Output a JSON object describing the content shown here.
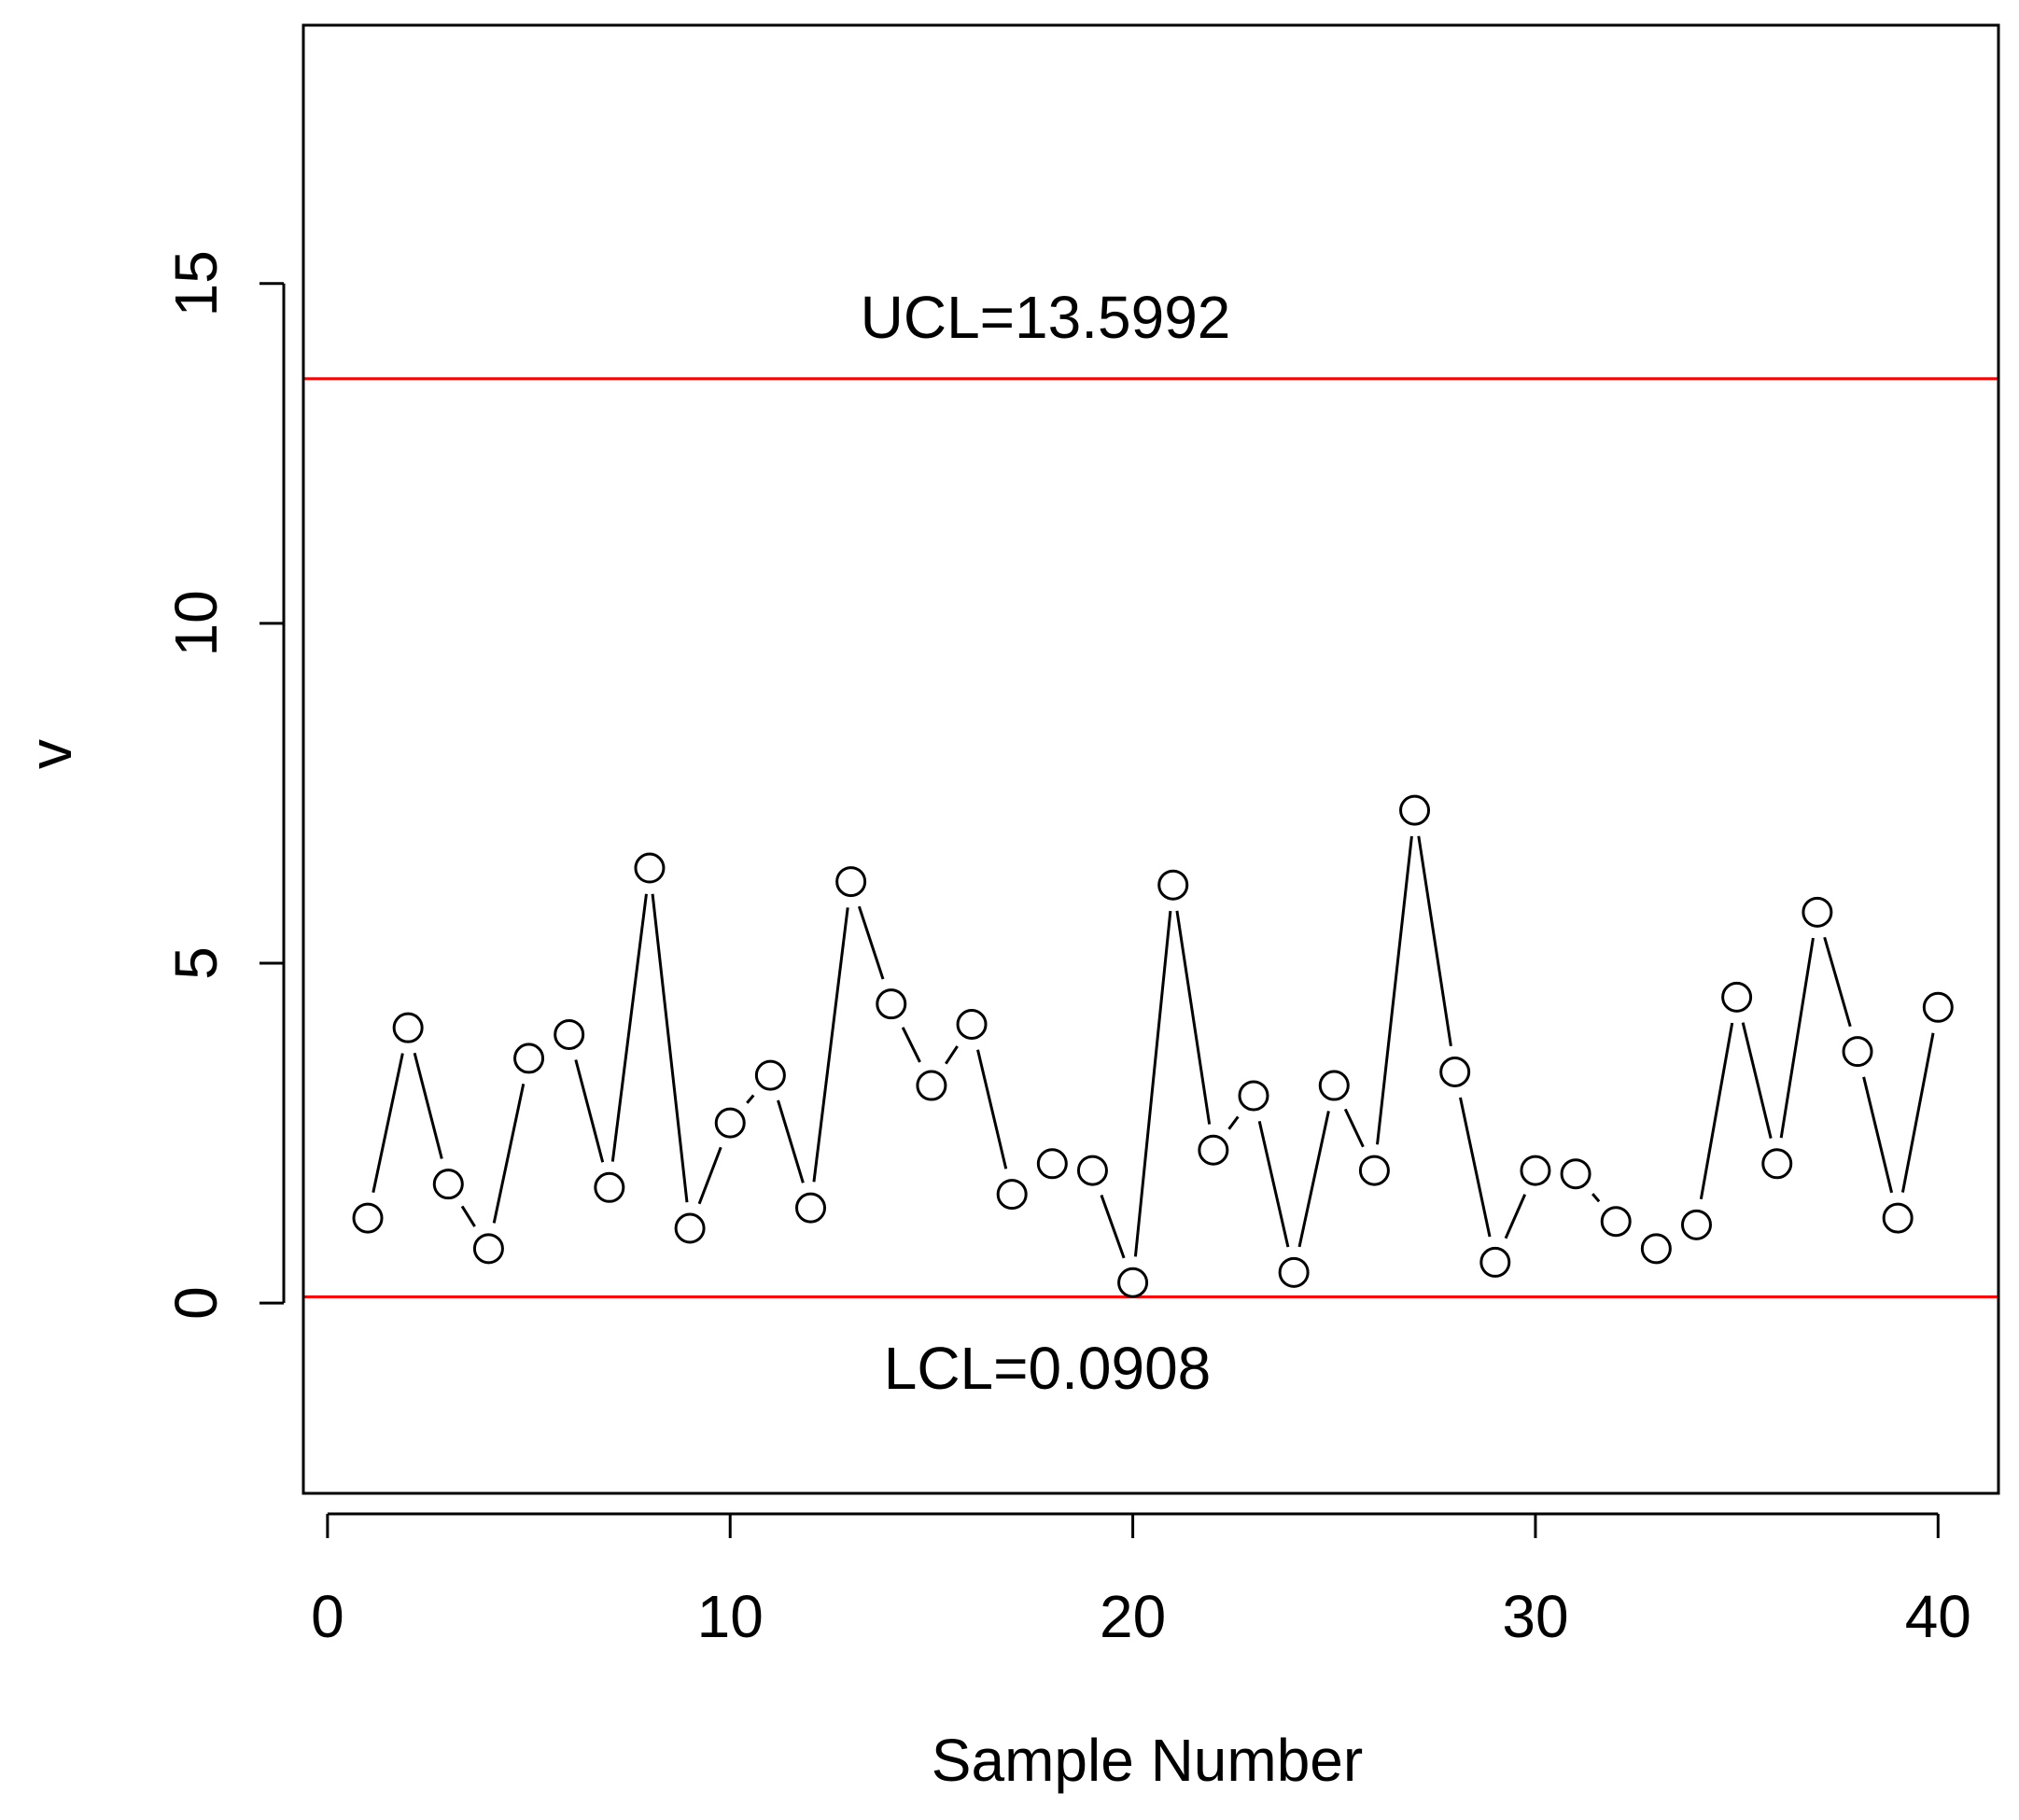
{
  "chart_data": {
    "type": "line",
    "title": "",
    "xlabel": "Sample Number",
    "ylabel": "v",
    "xlim": [
      -0.6,
      41.5
    ],
    "ylim": [
      -2.8,
      18.8
    ],
    "x_ticks": [
      0,
      10,
      20,
      30,
      40
    ],
    "y_ticks": [
      0,
      5,
      10,
      15
    ],
    "grid": false,
    "legend": "none",
    "series": [
      {
        "x": [
          1,
          2,
          3,
          4,
          5,
          6,
          7,
          8,
          9,
          10,
          11,
          12,
          13,
          14,
          15,
          16,
          17,
          18,
          19,
          20,
          21,
          22,
          23,
          24,
          25,
          26,
          27,
          28,
          29,
          30,
          31,
          32,
          33,
          34,
          35,
          36,
          37,
          38,
          39,
          40
        ],
        "values": [
          1.25,
          4.05,
          1.75,
          0.8,
          3.6,
          3.95,
          1.7,
          6.4,
          1.1,
          2.65,
          3.35,
          1.4,
          6.2,
          4.4,
          3.2,
          4.1,
          1.6,
          2.05,
          1.95,
          0.3,
          6.15,
          2.25,
          3.05,
          0.45,
          3.2,
          1.95,
          7.25,
          3.4,
          0.6,
          1.95,
          1.9,
          1.2,
          0.8,
          1.15,
          4.5,
          2.05,
          5.75,
          3.7,
          1.25,
          4.35
        ]
      }
    ],
    "control_limits": {
      "ucl": {
        "value": 13.5992,
        "label": "UCL=13.5992",
        "color": "#ff0000"
      },
      "lcl": {
        "value": 0.0908,
        "label": "LCL=0.0908",
        "color": "#ff0000"
      }
    },
    "colors": {
      "line": "#000000",
      "marker_fill": "#ffffff",
      "axis": "#000000"
    }
  }
}
